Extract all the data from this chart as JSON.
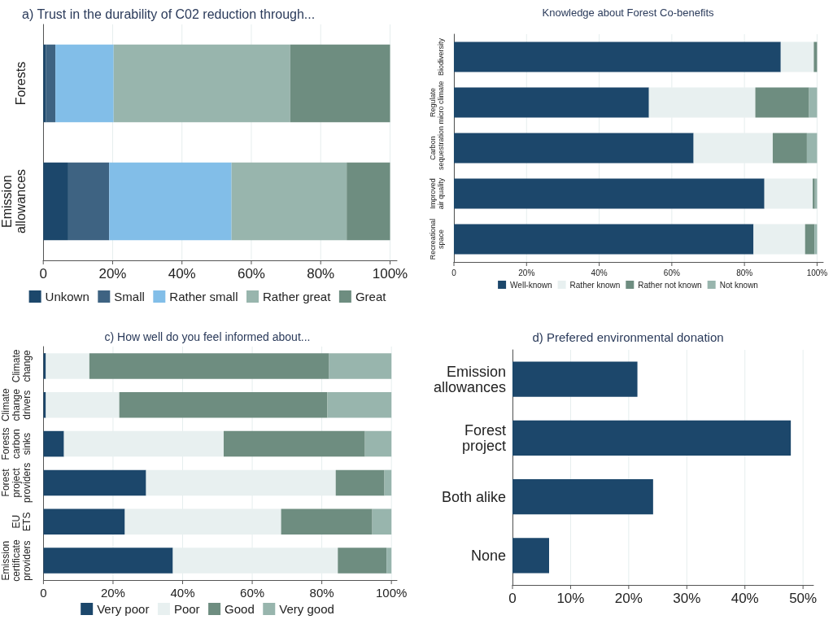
{
  "chart_data": [
    {
      "type": "bar",
      "orientation": "horizontal",
      "stacked": true,
      "title": "a) Trust in the durability of C02 reduction through...",
      "categories": [
        "Forests",
        "Emission\nallowances"
      ],
      "series": [
        {
          "name": "Unkown",
          "color": "#1c476b",
          "values": [
            0.8,
            7.2
          ]
        },
        {
          "name": "Small",
          "color": "#3e6382",
          "values": [
            2.7,
            11.8
          ]
        },
        {
          "name": "Rather small",
          "color": "#82bee8",
          "values": [
            16.8,
            35.3
          ]
        },
        {
          "name": "Rather great",
          "color": "#98b5ad",
          "values": [
            50.9,
            33.2
          ]
        },
        {
          "name": "Great",
          "color": "#6e8d80",
          "values": [
            28.8,
            12.5
          ]
        }
      ],
      "xlim": [
        0,
        102
      ],
      "xticks": [
        {
          "value": 0,
          "label": "0"
        },
        {
          "value": 20,
          "label": "20%"
        },
        {
          "value": 40,
          "label": "40%"
        },
        {
          "value": 60,
          "label": "60%"
        },
        {
          "value": 80,
          "label": "80%"
        },
        {
          "value": 100,
          "label": "100%"
        }
      ],
      "grid": "x",
      "legend": "bottom"
    },
    {
      "type": "bar",
      "orientation": "horizontal",
      "stacked": true,
      "title": "Knowledge about Forest Co-benefits",
      "categories": [
        "Biodiversity",
        "Regulate\nmicro climate",
        "Carbon\nsequestration",
        "Improved\nair quality",
        "Recreational\nspace"
      ],
      "series": [
        {
          "name": "Well-known",
          "color": "#1c476b",
          "values": [
            90.0,
            53.7,
            66.0,
            85.5,
            82.5
          ]
        },
        {
          "name": "Rather known",
          "color": "#e8f0f0",
          "values": [
            9.1,
            29.3,
            21.8,
            13.3,
            14.2
          ]
        },
        {
          "name": "Rather not known",
          "color": "#6e8d80",
          "values": [
            0.9,
            14.8,
            9.4,
            0.6,
            2.6
          ]
        },
        {
          "name": "Not known",
          "color": "#98b5ad",
          "values": [
            0,
            2.2,
            2.8,
            0.6,
            0.7
          ]
        }
      ],
      "xlim": [
        0,
        101.7
      ],
      "xticks": [
        {
          "value": 0,
          "label": "0"
        },
        {
          "value": 20,
          "label": "20%"
        },
        {
          "value": 40,
          "label": "40%"
        },
        {
          "value": 60,
          "label": "60%"
        },
        {
          "value": 80,
          "label": "80%"
        },
        {
          "value": 100,
          "label": "100%"
        }
      ],
      "grid": "x",
      "legend": "bottom"
    },
    {
      "type": "bar",
      "orientation": "horizontal",
      "stacked": true,
      "title": "c) How well do you feel informed about...",
      "categories": [
        "Climate\nchange",
        "Climate\nchange\ndrivers",
        "Forests\ncarbon\nsinks",
        "Forest\nproject\nproviders",
        "EU\nETS",
        "Emission\ncertificate\nproviders"
      ],
      "series": [
        {
          "name": "Very poor",
          "color": "#1c476b",
          "values": [
            0.7,
            0.7,
            5.9,
            29.5,
            23.4,
            37.2
          ]
        },
        {
          "name": "Poor",
          "color": "#e8f0f0",
          "values": [
            12.5,
            21.1,
            45.9,
            54.5,
            44.9,
            47.4
          ]
        },
        {
          "name": "Good",
          "color": "#6e8d80",
          "values": [
            68.9,
            59.8,
            40.6,
            14.0,
            26.2,
            14.0
          ]
        },
        {
          "name": "Very good",
          "color": "#98b5ad",
          "values": [
            17.9,
            18.4,
            7.6,
            2.0,
            5.5,
            1.4
          ]
        }
      ],
      "xlim": [
        0,
        101.6
      ],
      "xticks": [
        {
          "value": 0,
          "label": "0"
        },
        {
          "value": 20,
          "label": "20%"
        },
        {
          "value": 40,
          "label": "40%"
        },
        {
          "value": 60,
          "label": "60%"
        },
        {
          "value": 80,
          "label": "80%"
        },
        {
          "value": 100,
          "label": "100%"
        }
      ],
      "grid": "x",
      "legend": "bottom"
    },
    {
      "type": "bar",
      "orientation": "horizontal",
      "title": "d) Prefered environmental donation",
      "categories": [
        "Emission\nallowances",
        "Forest\nproject",
        "Both alike",
        "None"
      ],
      "values": [
        21.5,
        47.9,
        24.2,
        6.3
      ],
      "color": "#1c476b",
      "xlim": [
        0,
        51.8
      ],
      "xticks": [
        {
          "value": 0,
          "label": "0"
        },
        {
          "value": 10,
          "label": "10%"
        },
        {
          "value": 20,
          "label": "20%"
        },
        {
          "value": 30,
          "label": "30%"
        },
        {
          "value": 40,
          "label": "40%"
        },
        {
          "value": 50,
          "label": "50%"
        }
      ],
      "grid": "x"
    }
  ]
}
